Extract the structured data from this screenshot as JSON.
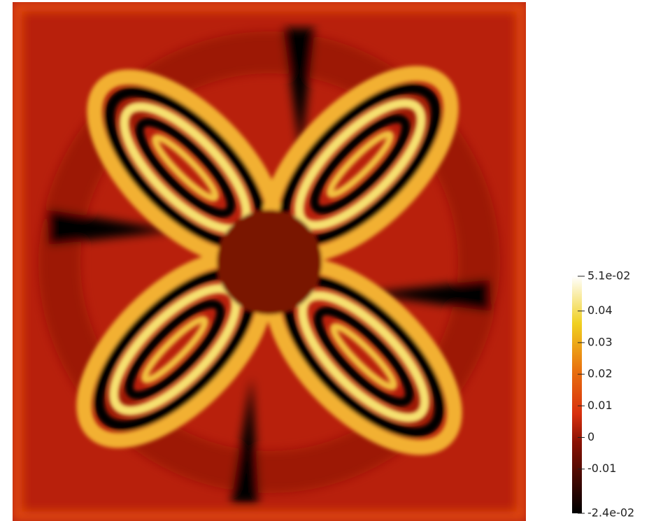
{
  "chart_data": {
    "type": "field",
    "clim": [
      -0.024,
      0.051
    ],
    "cticks": [
      {
        "value": 0.051,
        "label": "5.1e-02"
      },
      0.04,
      0.03,
      0.02,
      0.01,
      0,
      -0.01,
      {
        "value": -0.024,
        "label": "-2.4e-02"
      }
    ]
  }
}
